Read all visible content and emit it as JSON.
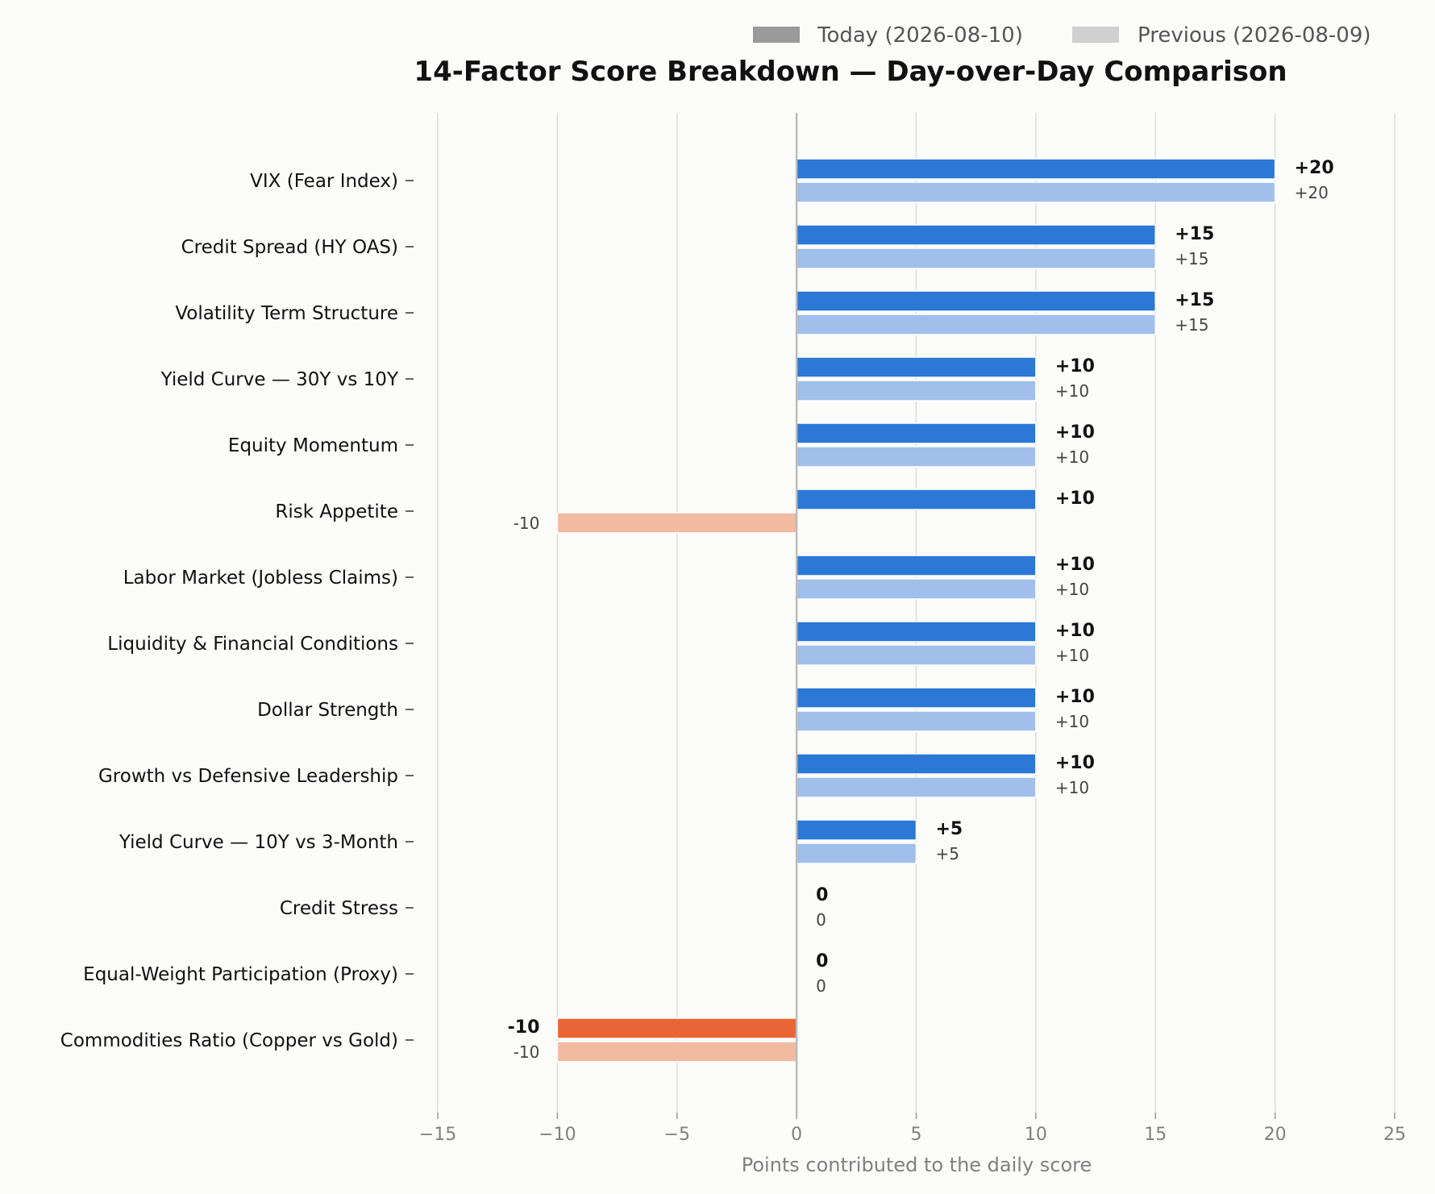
{
  "chart_data": {
    "type": "bar",
    "orientation": "horizontal",
    "title": "14-Factor Score Breakdown — Day-over-Day Comparison",
    "xlabel": "Points contributed to the daily score",
    "xlim": [
      -15,
      25
    ],
    "xticks": [
      -15,
      -10,
      -5,
      0,
      5,
      10,
      15,
      20,
      25
    ],
    "xtick_labels": [
      "−15",
      "−10",
      "−5",
      "0",
      "5",
      "10",
      "15",
      "20",
      "25"
    ],
    "grid": "vertical",
    "legend_position": "top-right",
    "categories": [
      "VIX (Fear Index)",
      "Credit Spread (HY OAS)",
      "Volatility Term Structure",
      "Yield Curve — 30Y vs 10Y",
      "Equity Momentum",
      "Risk Appetite",
      "Labor Market (Jobless Claims)",
      "Liquidity & Financial Conditions",
      "Dollar Strength",
      "Growth vs Defensive Leadership",
      "Yield Curve — 10Y vs 3-Month",
      "Credit Stress",
      "Equal-Weight Participation (Proxy)",
      "Commodities Ratio (Copper vs Gold)"
    ],
    "series": [
      {
        "name": "Today (2026-08-10)",
        "values": [
          20,
          15,
          15,
          10,
          10,
          10,
          10,
          10,
          10,
          10,
          5,
          0,
          0,
          -10
        ],
        "labels": [
          "+20",
          "+15",
          "+15",
          "+10",
          "+10",
          "+10",
          "+10",
          "+10",
          "+10",
          "+10",
          "+5",
          "0",
          "0",
          "-10"
        ]
      },
      {
        "name": "Previous (2026-08-09)",
        "values": [
          20,
          15,
          15,
          10,
          10,
          -10,
          10,
          10,
          10,
          10,
          5,
          0,
          0,
          -10
        ],
        "labels": [
          "+20",
          "+15",
          "+15",
          "+10",
          "+10",
          "-10",
          "+10",
          "+10",
          "+10",
          "+10",
          "+5",
          "0",
          "0",
          "-10"
        ]
      }
    ],
    "colors": {
      "today_positive": "#2b78d6",
      "today_negative": "#ea6535",
      "previous_positive": "#a0c0eb",
      "previous_negative": "#f2baa1",
      "legend_today": "#9a9a9a",
      "legend_previous": "#d0d0d0",
      "grid": "#dddddd",
      "zero_line": "#bbbbbb"
    }
  }
}
